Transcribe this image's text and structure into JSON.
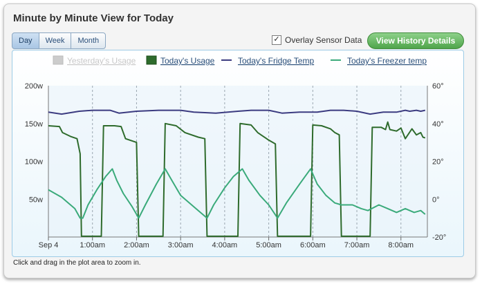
{
  "page": {
    "title": "Minute by Minute View for Today",
    "tabs": [
      {
        "label": "Day",
        "active": true
      },
      {
        "label": "Week",
        "active": false
      },
      {
        "label": "Month",
        "active": false
      }
    ],
    "overlay_checkbox": {
      "label": "Overlay Sensor Data",
      "checked": true
    },
    "history_button": "View History Details",
    "hint": "Click and drag in the plot area to zoom in."
  },
  "chart_data": {
    "type": "line",
    "x_tick_labels": [
      "Sep 4",
      "1:00am",
      "2:00am",
      "3:00am",
      "4:00am",
      "5:00am",
      "6:00am",
      "7:00am",
      "8:00am"
    ],
    "y_left_ticks": [
      "200w",
      "150w",
      "100w",
      "50w"
    ],
    "y_right_ticks": [
      "60°",
      "40°",
      "20°",
      "0°",
      "-20°"
    ],
    "ylim_left": [
      0,
      200
    ],
    "ylim_right": [
      -20,
      60
    ],
    "xlim_hours": [
      0,
      8.6
    ],
    "grid": "vertical dashed",
    "legend_position": "top",
    "series": [
      {
        "name": "Yesterday's Usage",
        "color": "#cccccc",
        "visible": false,
        "axis": "left",
        "points": []
      },
      {
        "name": "Today's Usage",
        "color": "#2e6b2c",
        "visible": true,
        "axis": "left",
        "points": [
          [
            0,
            147
          ],
          [
            0.25,
            146
          ],
          [
            0.32,
            138
          ],
          [
            0.5,
            133
          ],
          [
            0.65,
            130
          ],
          [
            0.72,
            110
          ],
          [
            0.75,
            1
          ],
          [
            1.2,
            1
          ],
          [
            1.25,
            147
          ],
          [
            1.5,
            147
          ],
          [
            1.65,
            146
          ],
          [
            1.75,
            130
          ],
          [
            2.0,
            125
          ],
          [
            2.05,
            1
          ],
          [
            2.6,
            1
          ],
          [
            2.65,
            150
          ],
          [
            2.9,
            147
          ],
          [
            3.1,
            138
          ],
          [
            3.4,
            132
          ],
          [
            3.55,
            130
          ],
          [
            3.6,
            1
          ],
          [
            4.3,
            1
          ],
          [
            4.35,
            150
          ],
          [
            4.6,
            148
          ],
          [
            4.75,
            138
          ],
          [
            5.0,
            128
          ],
          [
            5.15,
            123
          ],
          [
            5.2,
            1
          ],
          [
            5.95,
            1
          ],
          [
            6.0,
            148
          ],
          [
            6.2,
            147
          ],
          [
            6.4,
            143
          ],
          [
            6.5,
            138
          ],
          [
            6.6,
            135
          ],
          [
            6.65,
            1
          ],
          [
            7.3,
            1
          ],
          [
            7.35,
            145
          ],
          [
            7.55,
            145
          ],
          [
            7.65,
            142
          ],
          [
            7.7,
            152
          ],
          [
            7.75,
            142
          ],
          [
            7.9,
            140
          ],
          [
            8.0,
            144
          ],
          [
            8.1,
            130
          ],
          [
            8.25,
            143
          ],
          [
            8.35,
            135
          ],
          [
            8.45,
            138
          ],
          [
            8.5,
            132
          ],
          [
            8.55,
            131
          ]
        ]
      },
      {
        "name": "Today's Fridge Temp",
        "color": "#3b3b80",
        "visible": true,
        "axis": "right",
        "points": [
          [
            0,
            46
          ],
          [
            0.3,
            45
          ],
          [
            0.7,
            46.5
          ],
          [
            1.0,
            47
          ],
          [
            1.4,
            47
          ],
          [
            1.6,
            45.5
          ],
          [
            2.0,
            46.5
          ],
          [
            2.5,
            47
          ],
          [
            3.0,
            47
          ],
          [
            3.3,
            46
          ],
          [
            3.8,
            45.5
          ],
          [
            4.3,
            46.5
          ],
          [
            4.6,
            47
          ],
          [
            5.0,
            47
          ],
          [
            5.3,
            45.5
          ],
          [
            5.7,
            46
          ],
          [
            6.1,
            46
          ],
          [
            6.4,
            47
          ],
          [
            6.7,
            47
          ],
          [
            7.0,
            46.5
          ],
          [
            7.3,
            45
          ],
          [
            7.6,
            46
          ],
          [
            7.9,
            46
          ],
          [
            8.1,
            47
          ],
          [
            8.2,
            46.5
          ],
          [
            8.35,
            47
          ],
          [
            8.45,
            46.5
          ],
          [
            8.55,
            47
          ]
        ]
      },
      {
        "name": "Today's Freezer temp",
        "color": "#3aaa7a",
        "visible": true,
        "axis": "right",
        "points": [
          [
            0,
            5
          ],
          [
            0.3,
            1
          ],
          [
            0.6,
            -5
          ],
          [
            0.72,
            -10
          ],
          [
            0.78,
            -10
          ],
          [
            0.9,
            -3
          ],
          [
            1.1,
            5
          ],
          [
            1.3,
            12
          ],
          [
            1.45,
            16
          ],
          [
            1.55,
            10
          ],
          [
            1.7,
            3
          ],
          [
            1.9,
            -4
          ],
          [
            2.05,
            -10
          ],
          [
            2.2,
            -3
          ],
          [
            2.45,
            8
          ],
          [
            2.65,
            16
          ],
          [
            2.8,
            10
          ],
          [
            3.0,
            2
          ],
          [
            3.3,
            -4
          ],
          [
            3.6,
            -10
          ],
          [
            3.75,
            -3
          ],
          [
            4.0,
            6
          ],
          [
            4.2,
            12
          ],
          [
            4.4,
            16
          ],
          [
            4.55,
            10
          ],
          [
            4.8,
            2
          ],
          [
            5.0,
            -3
          ],
          [
            5.2,
            -10
          ],
          [
            5.4,
            -2
          ],
          [
            5.7,
            8
          ],
          [
            5.95,
            16
          ],
          [
            6.1,
            8
          ],
          [
            6.3,
            2
          ],
          [
            6.5,
            -2
          ],
          [
            6.65,
            -3
          ],
          [
            6.9,
            -3
          ],
          [
            7.1,
            -5
          ],
          [
            7.25,
            -6
          ],
          [
            7.5,
            -3
          ],
          [
            7.7,
            -5
          ],
          [
            7.9,
            -7
          ],
          [
            8.1,
            -5
          ],
          [
            8.3,
            -7
          ],
          [
            8.45,
            -6
          ],
          [
            8.55,
            -8
          ]
        ]
      }
    ]
  }
}
